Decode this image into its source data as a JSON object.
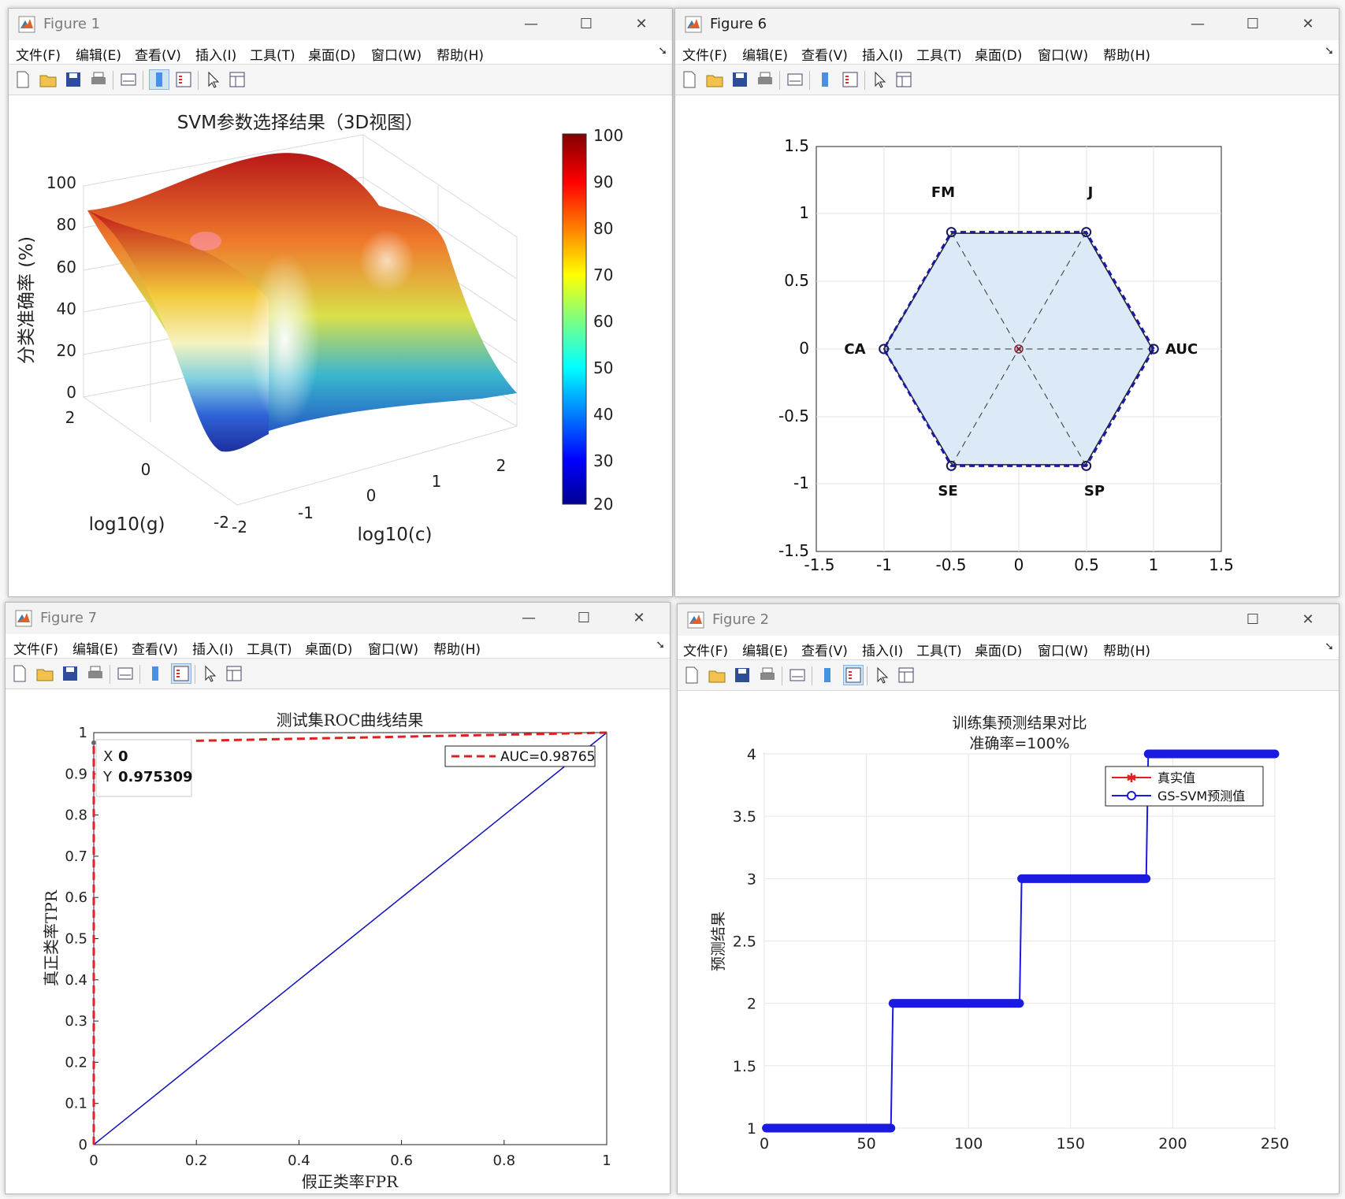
{
  "menus": [
    "文件(F)",
    "编辑(E)",
    "查看(V)",
    "插入(I)",
    "工具(T)",
    "桌面(D)",
    "窗口(W)",
    "帮助(H)"
  ],
  "figure1": {
    "window_title": "Figure 1",
    "title": "SVM参数选择结果（3D视图）",
    "zlabel": "分类准确率 (%)",
    "xlabel": "log10(c)",
    "ylabel": "log10(g)",
    "z_ticks": [
      "0",
      "20",
      "40",
      "60",
      "80",
      "100"
    ],
    "x_ticks": [
      "-2",
      "-1",
      "0",
      "1",
      "2"
    ],
    "y_ticks": [
      "-2",
      "0",
      "2"
    ],
    "colorbar_ticks": [
      "100",
      "90",
      "80",
      "70",
      "60",
      "50",
      "40",
      "30",
      "20"
    ],
    "colormap": "jet"
  },
  "figure6": {
    "window_title": "Figure 6",
    "vertex_labels": [
      "FM",
      "J",
      "AUC",
      "SP",
      "SE",
      "CA"
    ],
    "x_ticks": [
      "-1.5",
      "-1",
      "-0.5",
      "0",
      "0.5",
      "1",
      "1.5"
    ],
    "y_ticks": [
      "1.5",
      "1",
      "0.5",
      "0",
      "-0.5",
      "-1",
      "-1.5"
    ],
    "fill_color": "#dce9f7",
    "dashed_color": "#1a1aa8"
  },
  "figure7": {
    "window_title": "Figure 7",
    "title": "测试集ROC曲线结果",
    "xlabel": "假正类率FPR",
    "ylabel": "真正类率TPR",
    "legend": "AUC=0.98765",
    "datatip_x": "0",
    "datatip_y": "0.975309",
    "x_ticks": [
      "0",
      "0.2",
      "0.4",
      "0.6",
      "0.8",
      "1"
    ],
    "y_ticks": [
      "0",
      "0.1",
      "0.2",
      "0.3",
      "0.4",
      "0.5",
      "0.6",
      "0.7",
      "0.8",
      "0.9",
      "1"
    ],
    "roc_color": "#e02020",
    "diag_color": "#1010c0"
  },
  "figure2": {
    "window_title": "Figure 2",
    "title_line1": "训练集预测结果对比",
    "title_line2": "准确率=100%",
    "ylabel": "预测结果",
    "legend_true": "真实值",
    "legend_pred": "GS-SVM预测值",
    "x_ticks": [
      "0",
      "50",
      "100",
      "150",
      "200",
      "250"
    ],
    "y_ticks": [
      "4",
      "3.5",
      "3",
      "2.5",
      "2",
      "1.5",
      "1"
    ]
  },
  "chart_data": [
    {
      "type": "surface",
      "title": "SVM参数选择结果（3D视图）",
      "xlabel": "log10(c)",
      "ylabel": "log10(g)",
      "zlabel": "分类准确率 (%)",
      "xlim": [
        -2,
        2
      ],
      "ylim": [
        -2,
        2
      ],
      "zlim": [
        0,
        100
      ],
      "colorbar_range": [
        20,
        100
      ]
    },
    {
      "type": "radar",
      "axes": [
        "AUC",
        "J",
        "FM",
        "CA",
        "SE",
        "SP"
      ],
      "series": [
        {
          "style": "solid",
          "values": [
            0.99,
            0.99,
            0.99,
            1.0,
            0.99,
            0.99
          ]
        },
        {
          "style": "dashed",
          "values": [
            1.0,
            1.0,
            1.0,
            1.0,
            1.0,
            1.0
          ]
        }
      ],
      "xlim": [
        -1.5,
        1.5
      ],
      "ylim": [
        -1.5,
        1.5
      ]
    },
    {
      "type": "line",
      "title": "测试集ROC曲线结果",
      "xlabel": "假正类率FPR",
      "ylabel": "真正类率TPR",
      "series": [
        {
          "name": "AUC=0.98765",
          "x": [
            0,
            0,
            1
          ],
          "y": [
            0,
            0.975309,
            1
          ]
        },
        {
          "x": [
            0,
            1
          ],
          "y": [
            0,
            1
          ]
        }
      ],
      "xlim": [
        0,
        1
      ],
      "ylim": [
        0,
        1
      ]
    },
    {
      "type": "line",
      "title": "训练集预测结果对比 准确率=100%",
      "ylabel": "预测结果",
      "series": [
        {
          "name": "真实值",
          "x": [
            1,
            62,
            63,
            125,
            126,
            187,
            188,
            250
          ],
          "y": [
            1,
            1,
            2,
            2,
            3,
            3,
            4,
            4
          ]
        },
        {
          "name": "GS-SVM预测值",
          "x": [
            1,
            62,
            63,
            125,
            126,
            187,
            188,
            250
          ],
          "y": [
            1,
            1,
            2,
            2,
            3,
            3,
            4,
            4
          ]
        }
      ],
      "xlim": [
        0,
        250
      ],
      "ylim": [
        1,
        4
      ]
    }
  ]
}
